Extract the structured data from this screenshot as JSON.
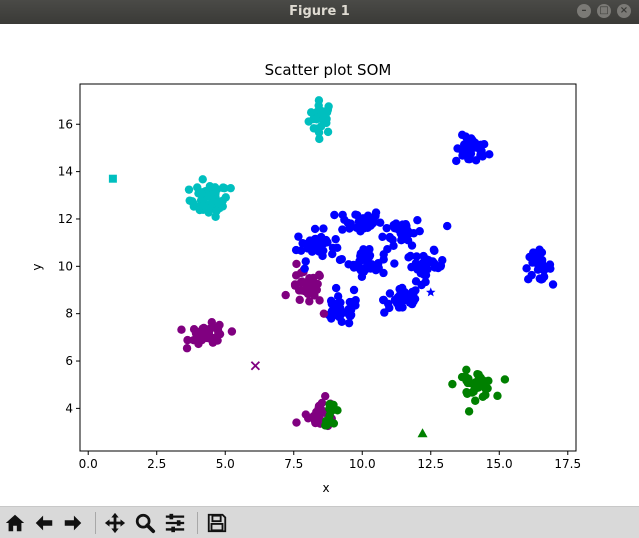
{
  "window": {
    "title": "Figure 1"
  },
  "toolbar": {
    "buttons": [
      {
        "name": "home-button",
        "icon": "home-icon"
      },
      {
        "name": "back-button",
        "icon": "arrow-left-icon"
      },
      {
        "name": "forward-button",
        "icon": "arrow-right-icon"
      },
      {
        "name": "pan-button",
        "icon": "move-icon"
      },
      {
        "name": "zoom-button",
        "icon": "zoom-icon"
      },
      {
        "name": "configure-subplots-button",
        "icon": "sliders-icon"
      },
      {
        "name": "save-button",
        "icon": "floppy-icon"
      }
    ]
  },
  "chart_data": {
    "type": "scatter",
    "title": "Scatter plot SOM",
    "xlabel": "x",
    "ylabel": "y",
    "xlim": [
      -0.3,
      17.8
    ],
    "ylim": [
      2.2,
      17.7
    ],
    "xticks": [
      "0.0",
      "2.5",
      "5.0",
      "7.5",
      "10.0",
      "12.5",
      "15.0",
      "17.5"
    ],
    "xtick_values": [
      0,
      2.5,
      5,
      7.5,
      10,
      12.5,
      15,
      17.5
    ],
    "yticks": [
      "4",
      "6",
      "8",
      "10",
      "12",
      "14",
      "16"
    ],
    "ytick_values": [
      4,
      6,
      8,
      10,
      12,
      14,
      16
    ],
    "grid": false,
    "colors": {
      "blue": "#0000ff",
      "cyan": "#00bfbf",
      "purple": "#800080",
      "green": "#008000"
    },
    "clusters": [
      {
        "color": "cyan",
        "cx": 8.5,
        "cy": 16.3,
        "sx": 0.22,
        "sy": 0.35,
        "n": 30
      },
      {
        "color": "cyan",
        "cx": 4.4,
        "cy": 12.8,
        "sx": 0.35,
        "sy": 0.35,
        "n": 45
      },
      {
        "color": "blue",
        "cx": 14.0,
        "cy": 14.9,
        "sx": 0.3,
        "sy": 0.3,
        "n": 35
      },
      {
        "color": "blue",
        "cx": 9.9,
        "cy": 11.9,
        "sx": 0.4,
        "sy": 0.25,
        "n": 40
      },
      {
        "color": "blue",
        "cx": 11.5,
        "cy": 11.5,
        "sx": 0.35,
        "sy": 0.3,
        "n": 35
      },
      {
        "color": "blue",
        "cx": 8.3,
        "cy": 10.9,
        "sx": 0.35,
        "sy": 0.3,
        "n": 35
      },
      {
        "color": "blue",
        "cx": 10.2,
        "cy": 10.2,
        "sx": 0.35,
        "sy": 0.3,
        "n": 40
      },
      {
        "color": "blue",
        "cx": 12.3,
        "cy": 10.0,
        "sx": 0.35,
        "sy": 0.3,
        "n": 35
      },
      {
        "color": "blue",
        "cx": 16.4,
        "cy": 10.0,
        "sx": 0.25,
        "sy": 0.3,
        "n": 30
      },
      {
        "color": "blue",
        "cx": 11.5,
        "cy": 8.6,
        "sx": 0.35,
        "sy": 0.3,
        "n": 35
      },
      {
        "color": "blue",
        "cx": 9.2,
        "cy": 8.1,
        "sx": 0.35,
        "sy": 0.3,
        "n": 35
      },
      {
        "color": "purple",
        "cx": 8.0,
        "cy": 9.1,
        "sx": 0.3,
        "sy": 0.35,
        "n": 35
      },
      {
        "color": "purple",
        "cx": 4.4,
        "cy": 7.1,
        "sx": 0.35,
        "sy": 0.22,
        "n": 40
      },
      {
        "color": "purple",
        "cx": 8.5,
        "cy": 3.8,
        "sx": 0.25,
        "sy": 0.3,
        "n": 25
      },
      {
        "color": "green",
        "cx": 8.9,
        "cy": 3.8,
        "sx": 0.15,
        "sy": 0.25,
        "n": 12
      },
      {
        "color": "green",
        "cx": 14.1,
        "cy": 5.0,
        "sx": 0.35,
        "sy": 0.28,
        "n": 40
      }
    ],
    "extra_points": [
      {
        "color": "blue",
        "x": 7.9,
        "y": 9.9
      },
      {
        "color": "blue",
        "x": 9.7,
        "y": 9.0
      },
      {
        "color": "blue",
        "x": 13.1,
        "y": 11.7
      },
      {
        "color": "cyan",
        "x": 5.2,
        "y": 13.3
      },
      {
        "color": "purple",
        "x": 7.6,
        "y": 3.4
      },
      {
        "color": "purple",
        "x": 8.6,
        "y": 8.0
      },
      {
        "color": "purple",
        "x": 7.6,
        "y": 10.1
      }
    ],
    "special_markers": [
      {
        "marker": "square",
        "color": "cyan",
        "x": 0.9,
        "y": 13.7
      },
      {
        "marker": "star",
        "color": "blue",
        "x": 12.5,
        "y": 8.9
      },
      {
        "marker": "x",
        "color": "purple",
        "x": 6.1,
        "y": 5.8
      },
      {
        "marker": "triangle",
        "color": "green",
        "x": 12.2,
        "y": 2.95
      }
    ]
  }
}
